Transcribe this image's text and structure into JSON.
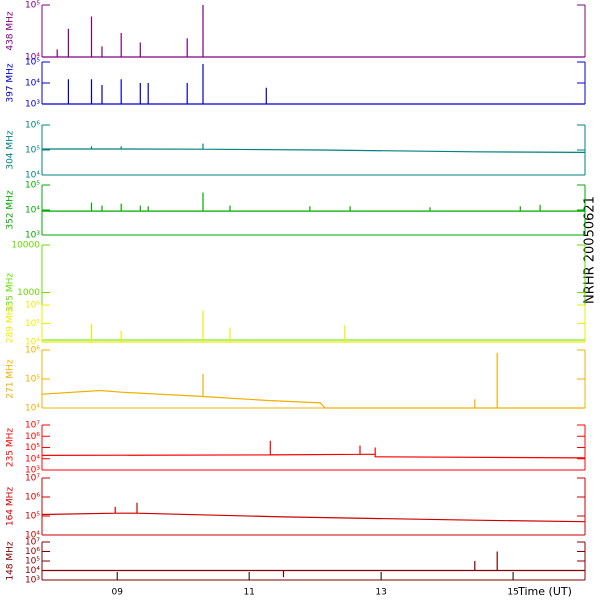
{
  "chart_data": {
    "type": "line",
    "ylog": true,
    "xlabel": "Time (UT)",
    "side_label": "NRHR 20050621",
    "xlim": [
      7.86,
      16.09
    ],
    "xticks": [
      {
        "value": 9,
        "label": "09"
      },
      {
        "value": 11,
        "label": "11"
      },
      {
        "value": 13,
        "label": "13"
      },
      {
        "value": 15,
        "label": "15"
      }
    ],
    "panels": [
      {
        "label": "438 MHz",
        "color": "#800080",
        "ylim": [
          10000,
          100000
        ],
        "yticks": [
          {
            "value": 10000,
            "label": "10⁴"
          },
          {
            "value": 100000,
            "label": "10⁵"
          }
        ],
        "x": [
          7.86,
          8.09,
          8.09,
          8.09,
          8.26,
          8.26,
          8.26,
          8.61,
          8.61,
          8.61,
          8.77,
          8.77,
          8.77,
          9.06,
          9.06,
          9.06,
          9.35,
          9.35,
          9.35,
          10.06,
          10.06,
          10.06,
          10.3,
          10.3,
          10.3,
          16.09
        ],
        "values": [
          10000,
          10000,
          14000,
          10000,
          10000,
          35000,
          10000,
          10000,
          60000,
          10000,
          10000,
          16000,
          10000,
          10000,
          29000,
          10000,
          10000,
          19000,
          10000,
          10000,
          23000,
          10000,
          10000,
          100000,
          10000,
          10000
        ]
      },
      {
        "label": "397 MHz",
        "color": "#0000cc",
        "ylim": [
          1000,
          100000
        ],
        "yticks": [
          {
            "value": 1000,
            "label": "10³"
          },
          {
            "value": 10000,
            "label": "10⁴"
          },
          {
            "value": 100000,
            "label": "10⁵"
          }
        ],
        "x": [
          7.86,
          8.26,
          8.26,
          8.26,
          8.61,
          8.61,
          8.61,
          8.77,
          8.77,
          8.77,
          9.06,
          9.06,
          9.06,
          9.35,
          9.35,
          9.35,
          9.47,
          9.47,
          9.47,
          10.06,
          10.06,
          10.06,
          10.3,
          10.3,
          10.3,
          11.26,
          11.26,
          11.26,
          16.09
        ],
        "values": [
          1000,
          1000,
          15000,
          1000,
          1000,
          15000,
          1000,
          1000,
          8000,
          1000,
          1000,
          15000,
          1000,
          1000,
          10000,
          1000,
          1000,
          10000,
          1000,
          1000,
          10000,
          1000,
          1000,
          80000,
          1000,
          1000,
          6000,
          1000,
          1000
        ]
      },
      {
        "label": "304 MHz",
        "color": "#008080",
        "ylim": [
          10000,
          1000000
        ],
        "yticks": [
          {
            "value": 10000,
            "label": "10⁴"
          },
          {
            "value": 100000,
            "label": "10⁵"
          },
          {
            "value": 1000000,
            "label": "10⁶"
          }
        ],
        "x": [
          7.86,
          8.61,
          8.61,
          8.61,
          9.06,
          9.06,
          9.06,
          10.3,
          10.3,
          10.3,
          12.08,
          14.42,
          16.09
        ],
        "values": [
          110000,
          110000,
          140000,
          110000,
          110000,
          140000,
          110000,
          108000,
          180000,
          108000,
          100000,
          85000,
          80000
        ]
      },
      {
        "label": "352 MHz",
        "color": "#00aa00",
        "ylim": [
          1000,
          100000
        ],
        "yticks": [
          {
            "value": 1000,
            "label": "10³"
          },
          {
            "value": 10000,
            "label": "10⁴"
          },
          {
            "value": 100000,
            "label": "10⁵"
          }
        ],
        "x": [
          7.86,
          8.61,
          8.61,
          8.61,
          8.77,
          8.77,
          8.77,
          9.06,
          9.06,
          9.06,
          9.35,
          9.35,
          9.35,
          9.47,
          9.47,
          9.47,
          10.3,
          10.3,
          10.3,
          10.71,
          10.71,
          10.71,
          11.92,
          11.92,
          11.92,
          12.53,
          12.53,
          12.53,
          13.74,
          13.74,
          13.74,
          15.11,
          15.11,
          15.11,
          15.41,
          15.41,
          15.41,
          16.09
        ],
        "values": [
          9000,
          9000,
          20000,
          9000,
          9000,
          15000,
          9000,
          9000,
          18000,
          9000,
          9000,
          15000,
          9000,
          9000,
          14000,
          9000,
          9000,
          50000,
          9000,
          9000,
          15000,
          9000,
          9000,
          14000,
          9000,
          9000,
          14000,
          9000,
          9000,
          13000,
          9000,
          9000,
          14000,
          9000,
          9000,
          16000,
          9000,
          9000
        ]
      },
      {
        "label": "335 MHz",
        "color": "#66dd00",
        "ylim": [
          100,
          10000
        ],
        "yticks": [
          1000,
          10000
        ],
        "x": [],
        "values": []
      },
      {
        "label": "289 MHz",
        "color": "#eeee00",
        "ylim": [
          10000,
          1000000
        ],
        "yticks": [
          {
            "value": 10000,
            "label": "10⁴"
          },
          {
            "value": 100000,
            "label": "10⁵"
          },
          {
            "value": 1000000,
            "label": "10⁶"
          }
        ],
        "x": [
          7.86,
          8.61,
          8.61,
          8.61,
          9.06,
          9.06,
          9.06,
          10.3,
          10.3,
          10.3,
          10.71,
          10.71,
          10.71,
          12.45,
          12.45,
          12.45,
          16.09
        ],
        "values": [
          10000,
          10000,
          100000,
          10000,
          10000,
          40000,
          10000,
          10000,
          500000,
          10000,
          10000,
          60000,
          10000,
          10000,
          80000,
          10000,
          10000
        ]
      },
      {
        "label": "271 MHz",
        "color": "#f0b000",
        "ylim": [
          10000,
          1000000
        ],
        "yticks": [
          {
            "value": 10000,
            "label": "10⁴"
          },
          {
            "value": 100000,
            "label": "10⁵"
          },
          {
            "value": 1000000,
            "label": "10⁶"
          }
        ],
        "x": [
          7.86,
          8.74,
          9.06,
          10.3,
          10.3,
          10.3,
          11.32,
          12.08,
          12.15,
          14.42,
          14.42,
          14.42,
          14.76,
          14.76,
          14.76,
          16.09
        ],
        "values": [
          30000,
          40000,
          35000,
          25000,
          150000,
          25000,
          18000,
          15000,
          10000,
          10000,
          20000,
          10000,
          10000,
          800000,
          10000,
          10000
        ]
      },
      {
        "label": "235 MHz",
        "color": "#ff0000",
        "ylim": [
          1000,
          10000000
        ],
        "yticks": [
          {
            "value": 1000,
            "label": "10³"
          },
          {
            "value": 10000,
            "label": "10⁴"
          },
          {
            "value": 100000,
            "label": "10⁵"
          },
          {
            "value": 1000000,
            "label": "10⁶"
          },
          {
            "value": 10000000,
            "label": "10⁷"
          }
        ],
        "x": [
          7.86,
          11.32,
          11.32,
          11.32,
          12.68,
          12.68,
          12.68,
          12.91,
          12.91,
          12.91,
          16.09
        ],
        "values": [
          20000,
          22000,
          400000,
          22000,
          25000,
          150000,
          25000,
          25000,
          100000,
          15000,
          12000
        ]
      },
      {
        "label": "164 MHz",
        "color": "#cc0000",
        "ylim": [
          10000,
          10000000
        ],
        "yticks": [
          {
            "value": 10000,
            "label": "10⁴"
          },
          {
            "value": 100000,
            "label": "10⁵"
          },
          {
            "value": 1000000,
            "label": "10⁶"
          },
          {
            "value": 10000000,
            "label": "10⁷"
          }
        ],
        "x": [
          7.86,
          8.97,
          8.97,
          8.97,
          9.3,
          9.3,
          9.3,
          11.52,
          14.42,
          16.09
        ],
        "values": [
          120000,
          140000,
          300000,
          140000,
          140000,
          500000,
          140000,
          90000,
          60000,
          50000
        ]
      },
      {
        "label": "148 MHz",
        "color": "#800000",
        "ylim": [
          1000,
          10000000
        ],
        "yticks": [
          {
            "value": 1000,
            "label": "10³"
          },
          {
            "value": 10000,
            "label": "10⁴"
          },
          {
            "value": 100000,
            "label": "10⁵"
          },
          {
            "value": 1000000,
            "label": "10⁶"
          },
          {
            "value": 10000000,
            "label": "10⁷"
          }
        ],
        "x": [
          7.86,
          11.52,
          11.52,
          11.52,
          14.42,
          14.42,
          14.42,
          14.76,
          14.76,
          14.76,
          16.09
        ],
        "values": [
          10000,
          10000,
          2000,
          10000,
          10000,
          100000,
          10000,
          10000,
          1000000,
          10000,
          10000
        ]
      }
    ]
  }
}
